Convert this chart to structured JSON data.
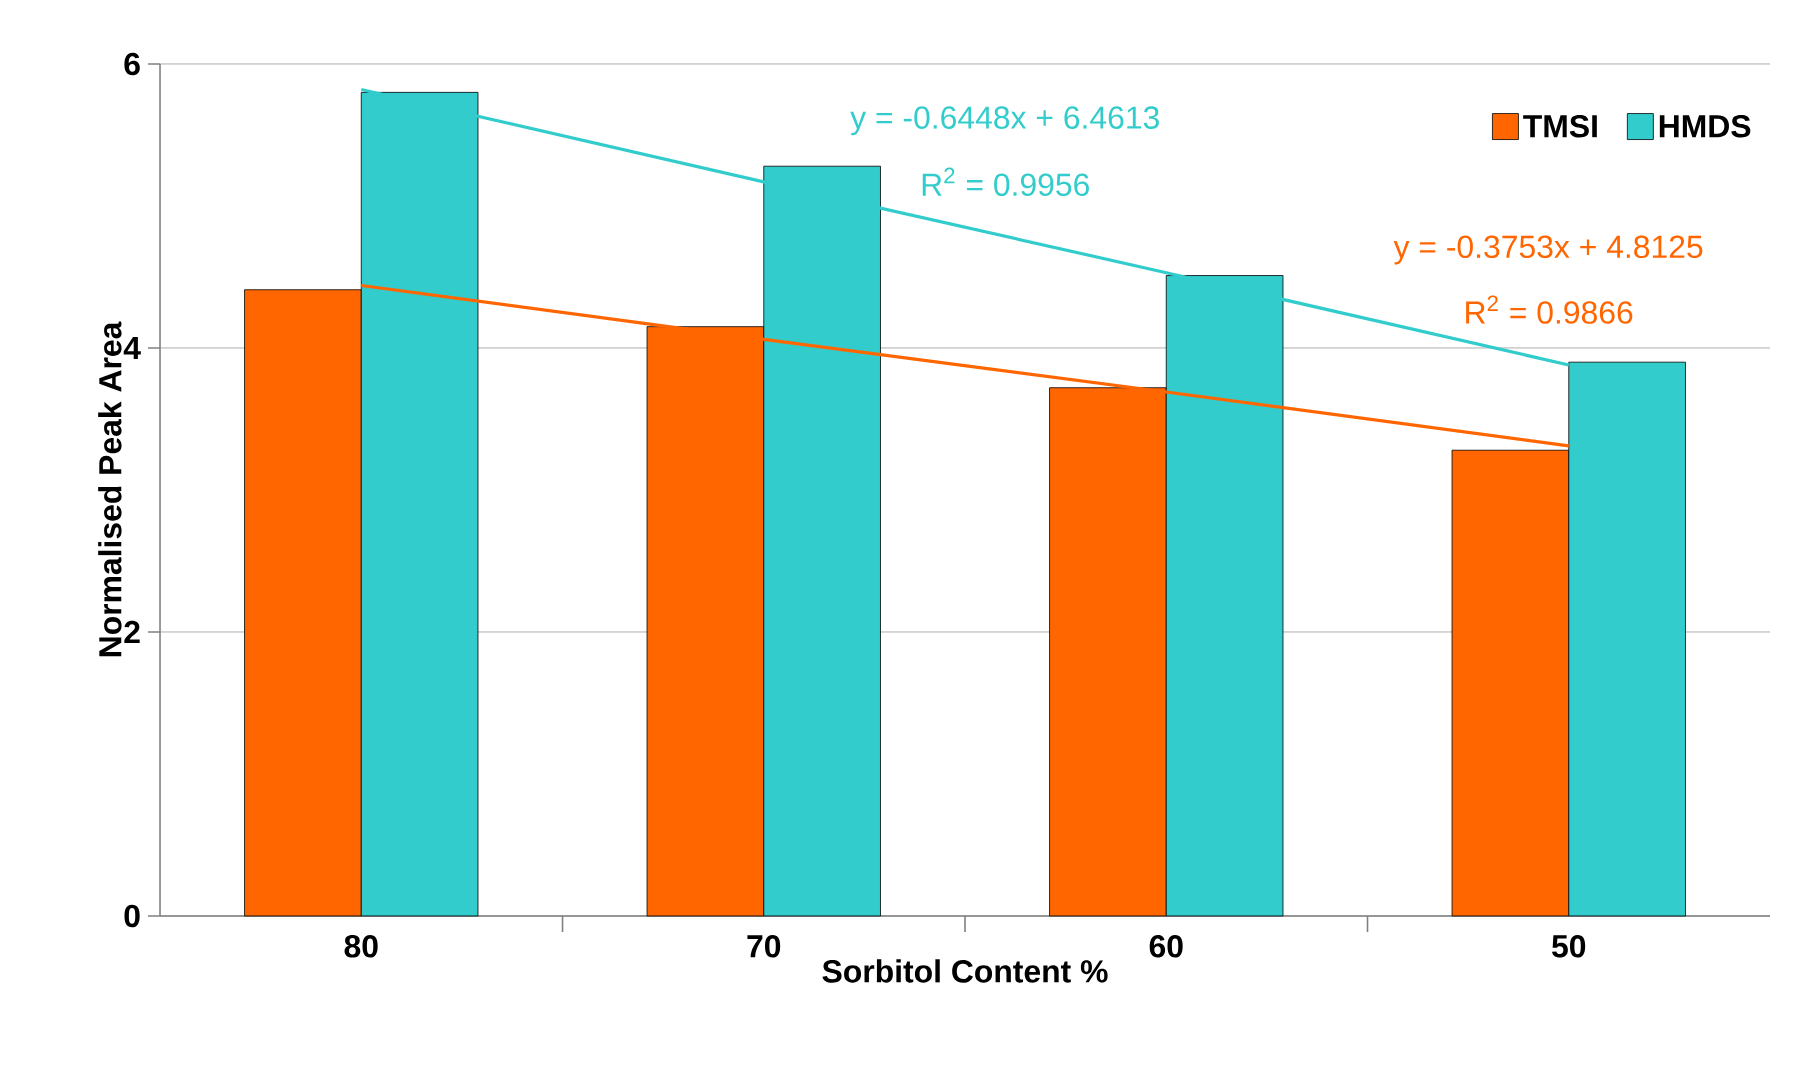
{
  "chart_data": {
    "type": "bar",
    "xlabel": "Sorbitol Content %",
    "ylabel": "Normalised Peak Area",
    "categories": [
      "80",
      "70",
      "60",
      "50"
    ],
    "series": [
      {
        "name": "TMSI",
        "color": "#ff6600",
        "values": [
          4.41,
          4.15,
          3.72,
          3.28
        ]
      },
      {
        "name": "HMDS",
        "color": "#33cccc",
        "values": [
          5.8,
          5.28,
          4.51,
          3.9
        ]
      },
      {
        "type": "line",
        "color": "#33cccc",
        "values": [
          5.82,
          5.17,
          4.53,
          3.88
        ]
      },
      {
        "type": "line",
        "color": "#ff6600",
        "values": [
          4.44,
          4.06,
          3.69,
          3.31
        ]
      }
    ],
    "ylim": [
      0,
      6
    ],
    "yticks": [
      0,
      2,
      4,
      6
    ],
    "grid": "y",
    "legend": "top right",
    "annotations": [
      "y = -0.6448x + 6.4613",
      "R$^{2}$ = 0.9956",
      "y = -0.3753x + 4.8125",
      "R$^{2}$ = 0.9866"
    ]
  }
}
